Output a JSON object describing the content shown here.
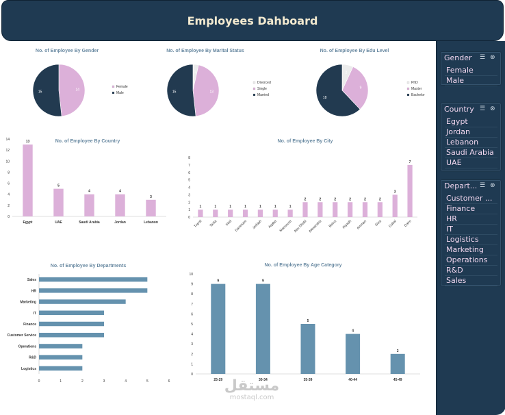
{
  "header": {
    "title": "Employees Dahboard"
  },
  "slicers": [
    {
      "title": "Gender",
      "items": [
        "Female",
        "Male"
      ]
    },
    {
      "title": "Country",
      "items": [
        "Egypt",
        "Jordan",
        "Lebanon",
        "Saudi Arabia",
        "UAE"
      ]
    },
    {
      "title": "Depart...",
      "items": [
        "Customer ...",
        "Finance",
        "HR",
        "IT",
        "Logistics",
        "Marketing",
        "Operations",
        "R&D",
        "Sales"
      ]
    }
  ],
  "slicer_icons": [
    "multi-select-icon",
    "clear-filter-icon"
  ],
  "chart_data": [
    {
      "type": "pie",
      "title": "No. of Employee By Gender",
      "categories": [
        "Female",
        "Male"
      ],
      "values": [
        14,
        15
      ],
      "colors": [
        "#dcb0d9",
        "#223a50"
      ],
      "legend": "right"
    },
    {
      "type": "pie",
      "title": "No. of Employee By Marital Status",
      "categories": [
        "Divorced",
        "Single",
        "Married"
      ],
      "values": [
        1,
        13,
        15
      ],
      "colors": [
        "#ececec",
        "#dcb0d9",
        "#223a50"
      ],
      "legend": "right"
    },
    {
      "type": "pie",
      "title": "No. of Employee By Edu Level",
      "categories": [
        "PhD",
        "Master",
        "Bachelor"
      ],
      "values": [
        2,
        9,
        18
      ],
      "colors": [
        "#ececec",
        "#dcb0d9",
        "#223a50"
      ],
      "legend": "right"
    },
    {
      "type": "bar",
      "title": "No. of Employee By Country",
      "categories": [
        "Egypt",
        "UAE",
        "Saudi Arabia",
        "Jordan",
        "Lebanon"
      ],
      "values": [
        13,
        5,
        4,
        4,
        3
      ],
      "ylim": [
        0,
        14
      ],
      "yticks": [
        0,
        2,
        4,
        6,
        8,
        10,
        12,
        14
      ],
      "color": "#dcb0d9"
    },
    {
      "type": "bar",
      "title": "No. of Employee By City",
      "categories": [
        "Tripoli",
        "Tanta",
        "Irbid",
        "Dammam",
        "Jeddah",
        "Aqaba",
        "Mansoura",
        "Abu Dhabi",
        "Alexandria",
        "Beirut",
        "Riyadh",
        "Amman",
        "Giza",
        "Dubai",
        "Cairo"
      ],
      "values": [
        1,
        1,
        1,
        1,
        1,
        1,
        1,
        2,
        2,
        2,
        2,
        2,
        2,
        3,
        7
      ],
      "ylim": [
        0,
        8
      ],
      "yticks": [
        0,
        1,
        2,
        3,
        4,
        5,
        6,
        7,
        8
      ],
      "color": "#dcb0d9"
    },
    {
      "type": "bar",
      "orientation": "horizontal",
      "title": "No. of Employee By Departments",
      "categories": [
        "Sales",
        "HR",
        "Marketing",
        "IT",
        "Finance",
        "Customer Service",
        "Operations",
        "R&D",
        "Logistics"
      ],
      "values": [
        5,
        5,
        4,
        3,
        3,
        3,
        2,
        2,
        2
      ],
      "xlim": [
        0,
        6
      ],
      "xticks": [
        0,
        1,
        2,
        3,
        4,
        5,
        6
      ],
      "color": "#6592ae"
    },
    {
      "type": "bar",
      "title": "No. of Employee By Age Category",
      "categories": [
        "25-29",
        "30-34",
        "35-39",
        "40-44",
        "45-49"
      ],
      "values": [
        9,
        9,
        5,
        4,
        2
      ],
      "ylim": [
        0,
        10
      ],
      "yticks": [
        0,
        1,
        2,
        3,
        4,
        5,
        6,
        7,
        8,
        9,
        10
      ],
      "color": "#6592ae"
    }
  ],
  "watermark": {
    "arabic": "مستقل",
    "latin": "mostaql.com"
  }
}
